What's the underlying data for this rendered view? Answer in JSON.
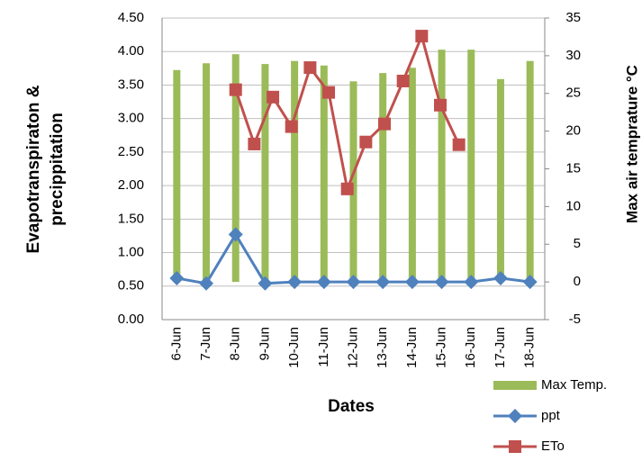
{
  "chart_data": {
    "type": "bar-line",
    "ylabel": [
      "Evapotranspiraton &",
      "precippitation"
    ],
    "y2label": "Max air temprature °C",
    "xlabel": "Dates",
    "categories": [
      "6-Jun",
      "7-Jun",
      "8-Jun",
      "9-Jun",
      "10-Jun",
      "11-Jun",
      "12-Jun",
      "13-Jun",
      "14-Jun",
      "15-Jun",
      "16-Jun",
      "17-Jun",
      "18-Jun"
    ],
    "series": [
      {
        "name": "Max Temp.",
        "type": "bar",
        "axis": "y2",
        "color": "#9bbb59",
        "values": [
          28.1,
          29.0,
          30.2,
          28.9,
          29.3,
          28.7,
          26.6,
          27.7,
          28.4,
          30.8,
          30.8,
          26.9,
          29.3
        ]
      },
      {
        "name": "ppt",
        "type": "line",
        "marker": "diamond",
        "axis": "y2",
        "color": "#4f81bd",
        "values": [
          0.5,
          -0.2,
          6.3,
          -0.2,
          0,
          0,
          0,
          0,
          0,
          0,
          0,
          0.5,
          0
        ]
      },
      {
        "name": "ETo",
        "type": "line",
        "marker": "square",
        "axis": "y",
        "color": "#c0504d",
        "values": [
          3.43,
          2.62,
          3.32,
          2.88,
          3.76,
          3.39,
          1.95,
          2.65,
          2.92,
          3.56,
          4.23,
          3.2,
          2.61
        ]
      }
    ],
    "ylim": [
      0,
      4.5
    ],
    "yticks": [
      {
        "value": 0,
        "label": "0.00"
      },
      {
        "value": 0.5,
        "label": "0.50"
      },
      {
        "value": 1,
        "label": "1.00"
      },
      {
        "value": 1.5,
        "label": "1.50"
      },
      {
        "value": 2,
        "label": "2.00"
      },
      {
        "value": 2.5,
        "label": "2.50"
      },
      {
        "value": 3,
        "label": "3.00"
      },
      {
        "value": 3.5,
        "label": "3.50"
      },
      {
        "value": 4,
        "label": "4.00"
      },
      {
        "value": 4.5,
        "label": "4.50"
      }
    ],
    "y2lim": [
      -5,
      35
    ],
    "y2ticks": [
      -5,
      0,
      5,
      10,
      15,
      20,
      25,
      30,
      35
    ],
    "grid": true,
    "legend": "bottom-right"
  }
}
